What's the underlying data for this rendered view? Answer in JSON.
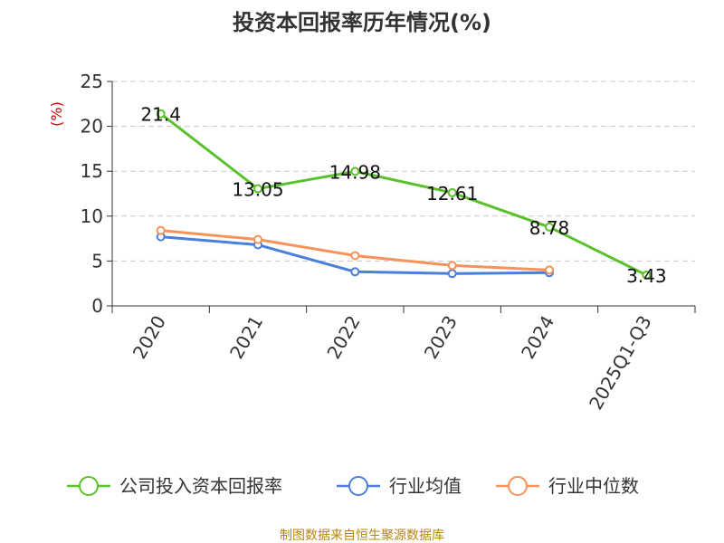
{
  "chart_data": {
    "type": "line",
    "title": "投资本回报率历年情况(%)",
    "ylabel": "(%)",
    "xlabel": "",
    "categories": [
      "2020",
      "2021",
      "2022",
      "2023",
      "2024",
      "2025Q1-Q3"
    ],
    "ylim": [
      0,
      25
    ],
    "yticks": [
      0,
      5,
      10,
      15,
      20,
      25
    ],
    "grid": true,
    "legend_position": "bottom",
    "series": [
      {
        "name": "公司投入资本回报率",
        "color": "#5ac12c",
        "values": [
          21.4,
          13.05,
          14.98,
          12.61,
          8.78,
          3.43
        ],
        "data_labels": [
          "21.4",
          "13.05",
          "14.98",
          "12.61",
          "8.78",
          "3.43"
        ]
      },
      {
        "name": "行业均值",
        "color": "#4a7fdb",
        "values": [
          7.7,
          6.8,
          3.8,
          3.6,
          3.7,
          null
        ]
      },
      {
        "name": "行业中位数",
        "color": "#f5935a",
        "values": [
          8.4,
          7.4,
          5.6,
          4.5,
          4.0,
          null
        ]
      }
    ]
  },
  "source": "制图数据来自恒生聚源数据库"
}
